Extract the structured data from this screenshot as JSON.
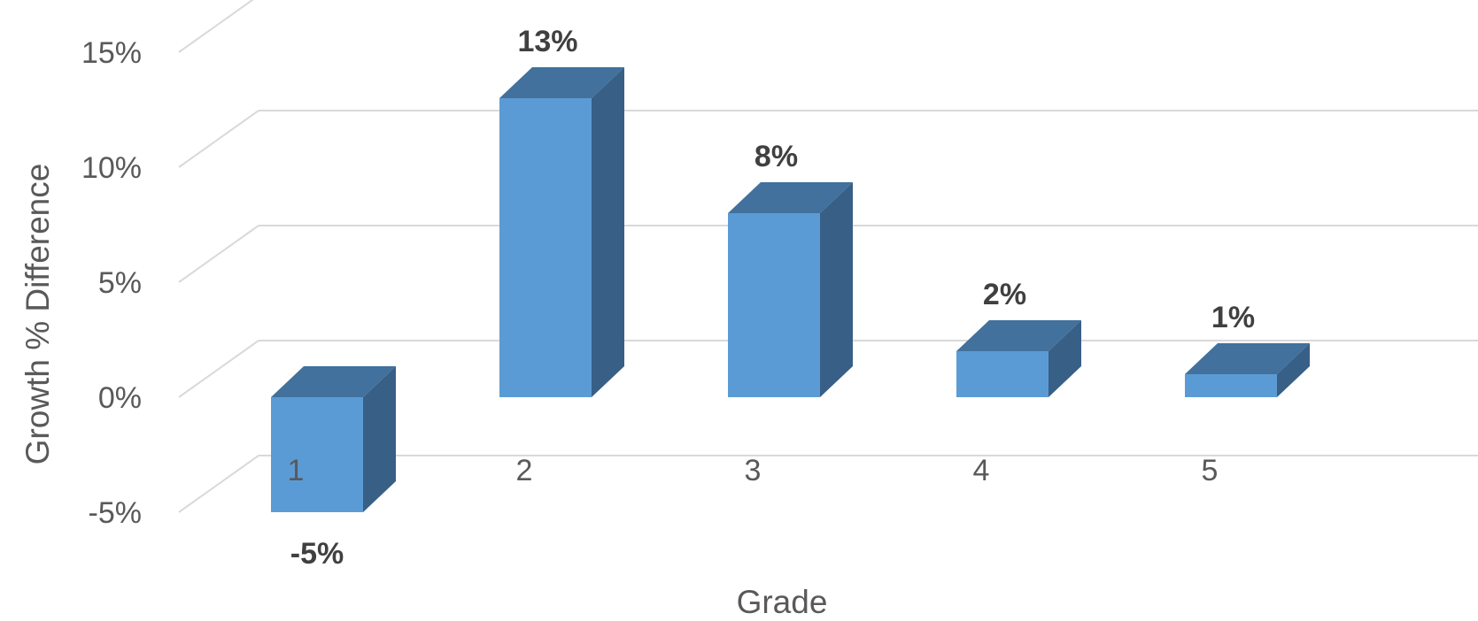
{
  "chart_data": {
    "type": "bar",
    "style": "3d-column",
    "categories": [
      "1",
      "2",
      "3",
      "4",
      "5"
    ],
    "values": [
      -5,
      13,
      8,
      2,
      1
    ],
    "data_labels": [
      "-5%",
      "13%",
      "8%",
      "2%",
      "1%"
    ],
    "title": "",
    "xlabel": "Grade",
    "ylabel": "Growth % Difference",
    "ylim": [
      -5,
      15
    ],
    "yticks": [
      -5,
      0,
      5,
      10,
      15
    ],
    "ytick_labels": [
      "-5%",
      "0%",
      "5%",
      "10%",
      "15%"
    ],
    "grid": true,
    "legend": "none",
    "colors": {
      "bar_front": "#5B9BD5",
      "bar_top": "#41719C",
      "bar_side": "#385F86",
      "gridline": "#D9D9D9",
      "text": "#595959",
      "data_label": "#404040"
    }
  }
}
